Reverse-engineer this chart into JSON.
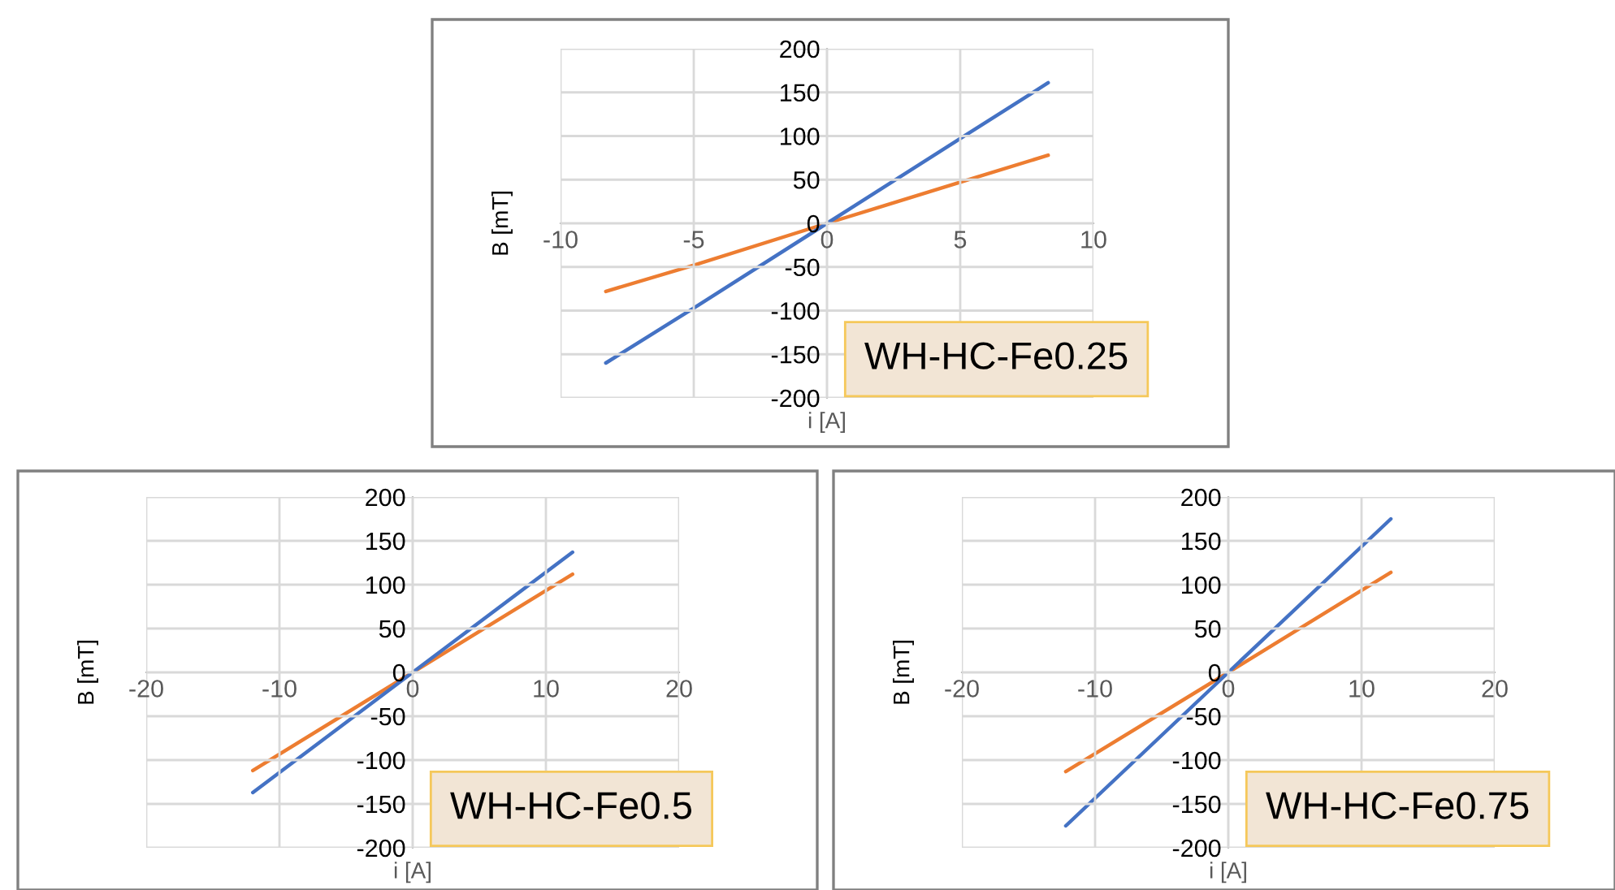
{
  "chart_data": [
    {
      "type": "line",
      "xlabel": "i [A]",
      "ylabel": "B [mT]",
      "annotations": [
        "WH-HC-Fe0.25"
      ],
      "xlim": [
        -10,
        10
      ],
      "xticks": [
        -10,
        -5,
        0,
        5,
        10
      ],
      "ylim": [
        -200,
        200
      ],
      "yticks": [
        -200,
        -150,
        -100,
        -50,
        0,
        50,
        100,
        150,
        200
      ],
      "grid": true,
      "line_style": "solid",
      "series": [
        {
          "color": "#ed7d31",
          "x": [
            -8.3,
            -5,
            0,
            5,
            8.3
          ],
          "values": [
            -78,
            -48,
            0,
            47,
            78
          ]
        },
        {
          "color": "#4472c4",
          "x": [
            -8.3,
            -5,
            0,
            5,
            8.3
          ],
          "values": [
            -160,
            -97,
            0,
            97,
            161
          ]
        }
      ]
    },
    {
      "type": "line",
      "xlabel": "i [A]",
      "ylabel": "B [mT]",
      "annotations": [
        "WH-HC-Fe0.5"
      ],
      "xlim": [
        -20,
        20
      ],
      "xticks": [
        -20,
        -10,
        0,
        10,
        20
      ],
      "ylim": [
        -200,
        200
      ],
      "yticks": [
        -200,
        -150,
        -100,
        -50,
        0,
        50,
        100,
        150,
        200
      ],
      "grid": true,
      "line_style": "solid",
      "series": [
        {
          "color": "#ed7d31",
          "x": [
            -12,
            0,
            12
          ],
          "values": [
            -112,
            0,
            112
          ]
        },
        {
          "color": "#4472c4",
          "x": [
            -12,
            0,
            12
          ],
          "values": [
            -137,
            0,
            137
          ]
        }
      ]
    },
    {
      "type": "line",
      "xlabel": "i [A]",
      "ylabel": "B [mT]",
      "annotations": [
        "WH-HC-Fe0.75"
      ],
      "xlim": [
        -20,
        20
      ],
      "xticks": [
        -20,
        -10,
        0,
        10,
        20
      ],
      "ylim": [
        -200,
        200
      ],
      "yticks": [
        -200,
        -150,
        -100,
        -50,
        0,
        50,
        100,
        150,
        200
      ],
      "grid": true,
      "line_style": "solid",
      "series": [
        {
          "color": "#ed7d31",
          "x": [
            -12.2,
            0,
            12.2
          ],
          "values": [
            -113,
            0,
            114
          ]
        },
        {
          "color": "#4472c4",
          "x": [
            -12.2,
            0,
            12.2
          ],
          "values": [
            -175,
            0,
            175
          ]
        }
      ]
    }
  ]
}
